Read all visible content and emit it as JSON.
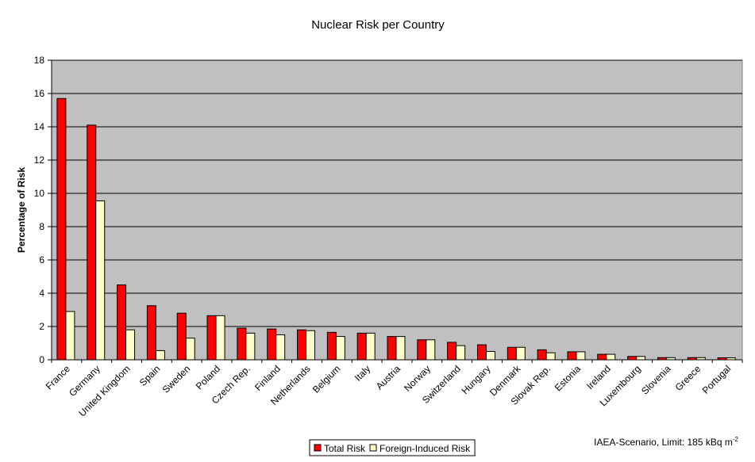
{
  "chart_data": {
    "type": "bar",
    "title": "Nuclear Risk per Country",
    "xlabel": "",
    "ylabel": "Percentage of Risk",
    "ylim": [
      0,
      18
    ],
    "yticks": [
      0,
      2,
      4,
      6,
      8,
      10,
      12,
      14,
      16,
      18
    ],
    "grid": true,
    "legend_position": "bottom",
    "plot_background": "#c0c0c0",
    "categories": [
      "France",
      "Germany",
      "United Kingdom",
      "Spain",
      "Sweden",
      "Poland",
      "Czech Rep.",
      "Finland",
      "Netherlands",
      "Belgium",
      "Italy",
      "Austria",
      "Norway",
      "Switzerland",
      "Hungary",
      "Denmark",
      "Slovak Rep.",
      "Estonia",
      "Ireland",
      "Luxembourg",
      "Slovenia",
      "Greece",
      "Portugal"
    ],
    "series": [
      {
        "name": "Total Risk",
        "color": "#ff0000",
        "values": [
          15.7,
          14.1,
          4.5,
          3.25,
          2.8,
          2.65,
          1.9,
          1.85,
          1.8,
          1.65,
          1.6,
          1.4,
          1.2,
          1.05,
          0.9,
          0.75,
          0.6,
          0.48,
          0.33,
          0.2,
          0.13,
          0.13,
          0.12
        ]
      },
      {
        "name": "Foreign-Induced Risk",
        "color": "#ffffcc",
        "values": [
          2.9,
          9.55,
          1.8,
          0.55,
          1.3,
          2.65,
          1.6,
          1.5,
          1.75,
          1.4,
          1.6,
          1.4,
          1.2,
          0.85,
          0.5,
          0.75,
          0.42,
          0.48,
          0.33,
          0.2,
          0.13,
          0.13,
          0.12
        ]
      }
    ],
    "annotation": {
      "text": "IAEA-Scenario, Limit: 185 kBq m",
      "superscript": "-2"
    }
  }
}
